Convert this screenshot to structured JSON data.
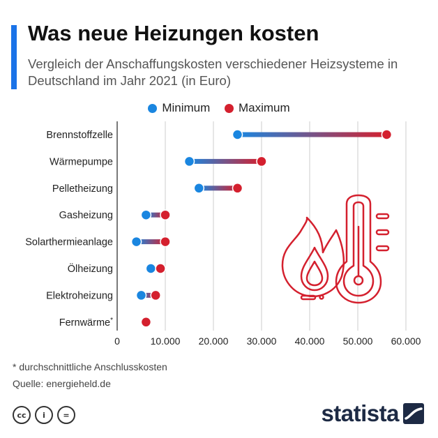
{
  "header": {
    "title": "Was neue Heizungen kosten",
    "subtitle": "Vergleich der Anschaffungskosten verschiedener Heizsysteme in Deutschland im Jahr 2021 (in Euro)"
  },
  "colors": {
    "accent": "#1a73e8",
    "minimum": "#1a86e0",
    "maximum": "#d4202e",
    "grid": "#cccccc",
    "illustration": "#d4202e"
  },
  "legend": {
    "position": "top-center",
    "minimum_label": "Minimum",
    "maximum_label": "Maximum"
  },
  "chart_data": {
    "type": "dumbbell",
    "title": "Was neue Heizungen kosten",
    "subtitle": "Vergleich der Anschaffungskosten verschiedener Heizsysteme in Deutschland im Jahr 2021 (in Euro)",
    "orientation": "horizontal",
    "categories": [
      "Brennstoffzelle",
      "Wärmepumpe",
      "Pelletheizung",
      "Gasheizung",
      "Solarthermieanlage",
      "Ölheizung",
      "Elektroheizung",
      "Fernwärme*"
    ],
    "series": [
      {
        "name": "Minimum",
        "values": [
          25000,
          15000,
          17000,
          6000,
          4000,
          7000,
          5000,
          null
        ]
      },
      {
        "name": "Maximum",
        "values": [
          56000,
          30000,
          25000,
          10000,
          10000,
          9000,
          8000,
          6000
        ]
      }
    ],
    "xlim": [
      0,
      60000
    ],
    "xticks": [
      0,
      10000,
      20000,
      30000,
      40000,
      50000,
      60000
    ],
    "xtick_labels": [
      "0",
      "10.000",
      "20.000",
      "30.000",
      "40.000",
      "50.000",
      "60.000"
    ],
    "grid": "vertical",
    "xlabel": "",
    "ylabel": ""
  },
  "footer": {
    "footnote": "* durchschnittliche Anschlusskosten",
    "source": "Quelle: energieheld.de",
    "logo_text": "statista",
    "license_icons": [
      "cc-icon",
      "by-icon",
      "nd-icon"
    ],
    "license_glyphs": [
      "cc",
      "i",
      "="
    ]
  }
}
